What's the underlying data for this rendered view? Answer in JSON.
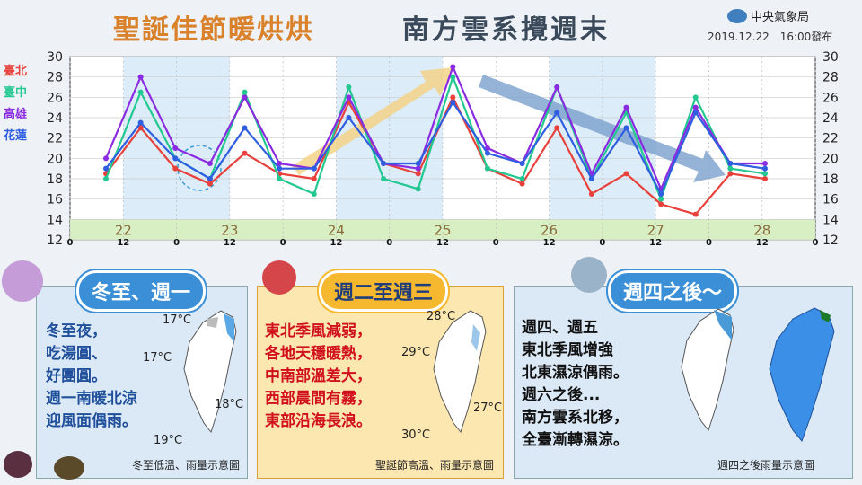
{
  "header": {
    "title": "聖誕佳節暖烘烘",
    "subtitle": "南方雲系攪週末",
    "agency": "中央氣象局",
    "issued": "2019.12.22　16:00發布"
  },
  "colors": {
    "taipei": "#e8403a",
    "taichung": "#22c890",
    "kaohsiung": "#8a2be2",
    "hualien": "#2f5fe0"
  },
  "chart_data": {
    "type": "line",
    "ylim": [
      12,
      30
    ],
    "yticks": [
      12,
      14,
      16,
      18,
      20,
      22,
      24,
      26,
      28,
      30
    ],
    "x_ticks": [
      "0",
      "12",
      "0",
      "12",
      "0",
      "12",
      "0",
      "12",
      "0",
      "12",
      "0",
      "12",
      "0",
      "12",
      "0"
    ],
    "day_labels": [
      "22",
      "23",
      "24",
      "25",
      "26",
      "27",
      "28"
    ],
    "series": [
      {
        "name": "臺北",
        "color": "#e8403a",
        "values": [
          18.5,
          23,
          19,
          17.5,
          20.5,
          18.5,
          18,
          25.5,
          19.5,
          18.5,
          26,
          19,
          17.5,
          23,
          16.5,
          18.5,
          15.5,
          14.5,
          18.5,
          18
        ]
      },
      {
        "name": "臺中",
        "color": "#22c890",
        "values": [
          18,
          26.5,
          20,
          18,
          26.5,
          18,
          16.5,
          27,
          18,
          17,
          28,
          19,
          18,
          27,
          18,
          24.5,
          16,
          26,
          19,
          18.5
        ]
      },
      {
        "name": "高雄",
        "color": "#8a2be2",
        "values": [
          20,
          28,
          21,
          19.5,
          26,
          19.5,
          19,
          26,
          19.5,
          19,
          29,
          21,
          19.5,
          27,
          18.5,
          25,
          17,
          25,
          19.5,
          19.5
        ]
      },
      {
        "name": "花蓮",
        "color": "#2f5fe0",
        "values": [
          19,
          23.5,
          20,
          18,
          23,
          19,
          19,
          24,
          19.5,
          19.5,
          25.5,
          20.5,
          19.5,
          24.5,
          18,
          23,
          16.5,
          24.5,
          19.5,
          19
        ]
      }
    ]
  },
  "panels": [
    {
      "heading": "冬至、週一",
      "lines": [
        "冬至夜，",
        "吃湯圓、",
        "好團圓。",
        "週一南暖北涼",
        "迎風面偶雨。"
      ],
      "temps": [
        "17°C",
        "17°C",
        "18°C",
        "19°C"
      ],
      "caption": "冬至低溫、雨量示意圖"
    },
    {
      "heading": "週二至週三",
      "lines": [
        "東北季風減弱，",
        "各地天穩暖熱，",
        "中南部溫差大，",
        "西部晨間有霧，",
        "東部沿海長浪。"
      ],
      "temps": [
        "28°C",
        "29°C",
        "27°C",
        "30°C"
      ],
      "caption": "聖誕節高溫、雨量示意圖"
    },
    {
      "heading": "週四之後～",
      "lines": [
        "週四、週五",
        "東北季風增強",
        "北東濕涼偶雨。",
        "週六之後...",
        "南方雲系北移，",
        "全臺漸轉濕涼。"
      ],
      "caption": "週四之後雨量示意圖"
    }
  ]
}
